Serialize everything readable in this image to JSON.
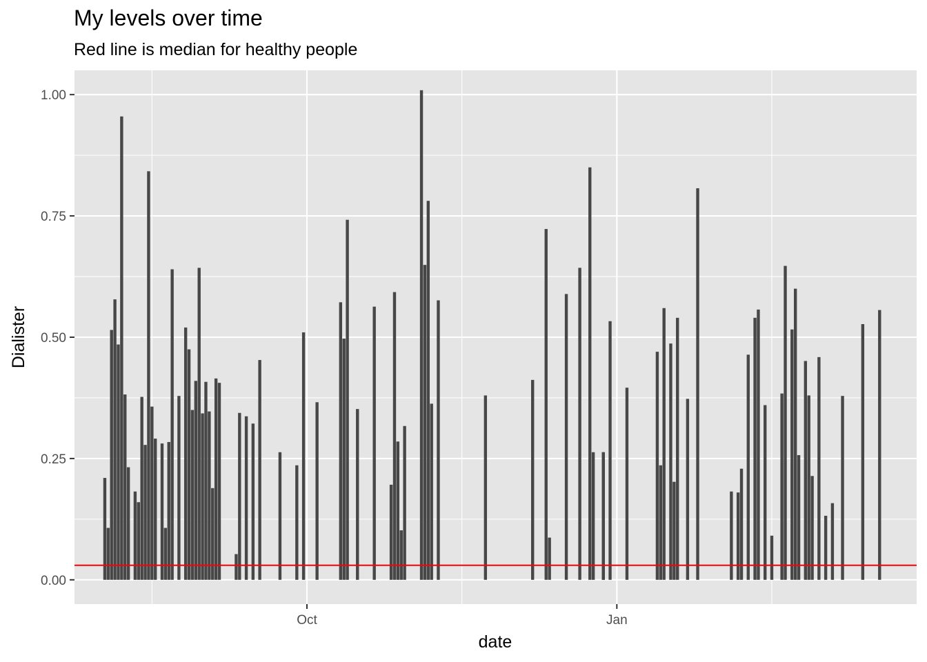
{
  "chart_data": {
    "type": "bar",
    "title": "My levels over time",
    "subtitle": "Red line is median for healthy people",
    "xlabel": "date",
    "ylabel": "Dialister",
    "x_range": [
      "2021-07-24",
      "2021-04-01"
    ],
    "x_domain_days": [
      0,
      250
    ],
    "ylim": [
      -0.05,
      1.05
    ],
    "x_tick_labels": [
      {
        "label": "Oct",
        "date": "2021-10-01"
      },
      {
        "label": "Jan",
        "date": "2022-01-01"
      }
    ],
    "y_ticks": [
      0.0,
      0.25,
      0.5,
      0.75,
      1.0
    ],
    "y_tick_labels": [
      "0.00",
      "0.25",
      "0.50",
      "0.75",
      "1.00"
    ],
    "hline": {
      "value": 0.03,
      "color": "#ff0000"
    },
    "bar_color": "#474747",
    "panel_color": "#e5e5e5",
    "grid": true,
    "legend": "none",
    "bars": [
      {
        "x": "2021-08-02",
        "y": 0.21
      },
      {
        "x": "2021-08-03",
        "y": 0.107
      },
      {
        "x": "2021-08-04",
        "y": 0.515
      },
      {
        "x": "2021-08-05",
        "y": 0.578
      },
      {
        "x": "2021-08-06",
        "y": 0.485
      },
      {
        "x": "2021-08-07",
        "y": 0.955
      },
      {
        "x": "2021-08-08",
        "y": 0.382
      },
      {
        "x": "2021-08-09",
        "y": 0.232
      },
      {
        "x": "2021-08-11",
        "y": 0.182
      },
      {
        "x": "2021-08-12",
        "y": 0.16
      },
      {
        "x": "2021-08-13",
        "y": 0.377
      },
      {
        "x": "2021-08-14",
        "y": 0.278
      },
      {
        "x": "2021-08-15",
        "y": 0.842
      },
      {
        "x": "2021-08-16",
        "y": 0.357
      },
      {
        "x": "2021-08-17",
        "y": 0.291
      },
      {
        "x": "2021-08-19",
        "y": 0.281
      },
      {
        "x": "2021-08-20",
        "y": 0.107
      },
      {
        "x": "2021-08-21",
        "y": 0.284
      },
      {
        "x": "2021-08-22",
        "y": 0.64
      },
      {
        "x": "2021-08-24",
        "y": 0.379
      },
      {
        "x": "2021-08-26",
        "y": 0.52
      },
      {
        "x": "2021-08-27",
        "y": 0.475
      },
      {
        "x": "2021-08-28",
        "y": 0.35
      },
      {
        "x": "2021-08-29",
        "y": 0.41
      },
      {
        "x": "2021-08-30",
        "y": 0.643
      },
      {
        "x": "2021-08-31",
        "y": 0.343
      },
      {
        "x": "2021-09-01",
        "y": 0.408
      },
      {
        "x": "2021-09-02",
        "y": 0.347
      },
      {
        "x": "2021-09-03",
        "y": 0.189
      },
      {
        "x": "2021-09-04",
        "y": 0.415
      },
      {
        "x": "2021-09-05",
        "y": 0.406
      },
      {
        "x": "2021-09-10",
        "y": 0.053
      },
      {
        "x": "2021-09-11",
        "y": 0.344
      },
      {
        "x": "2021-09-13",
        "y": 0.337
      },
      {
        "x": "2021-09-15",
        "y": 0.322
      },
      {
        "x": "2021-09-17",
        "y": 0.453
      },
      {
        "x": "2021-09-23",
        "y": 0.263
      },
      {
        "x": "2021-09-28",
        "y": 0.236
      },
      {
        "x": "2021-09-30",
        "y": 0.51
      },
      {
        "x": "2021-10-04",
        "y": 0.366
      },
      {
        "x": "2021-10-11",
        "y": 0.572
      },
      {
        "x": "2021-10-12",
        "y": 0.497
      },
      {
        "x": "2021-10-13",
        "y": 0.742
      },
      {
        "x": "2021-10-16",
        "y": 0.352
      },
      {
        "x": "2021-10-21",
        "y": 0.563
      },
      {
        "x": "2021-10-26",
        "y": 0.196
      },
      {
        "x": "2021-10-27",
        "y": 0.593
      },
      {
        "x": "2021-10-28",
        "y": 0.285
      },
      {
        "x": "2021-10-29",
        "y": 0.102
      },
      {
        "x": "2021-10-30",
        "y": 0.317
      },
      {
        "x": "2021-11-04",
        "y": 1.009
      },
      {
        "x": "2021-11-05",
        "y": 0.649
      },
      {
        "x": "2021-11-06",
        "y": 0.781
      },
      {
        "x": "2021-11-07",
        "y": 0.363
      },
      {
        "x": "2021-11-09",
        "y": 0.576
      },
      {
        "x": "2021-11-23",
        "y": 0.38
      },
      {
        "x": "2021-12-07",
        "y": 0.412
      },
      {
        "x": "2021-12-11",
        "y": 0.723
      },
      {
        "x": "2021-12-12",
        "y": 0.087
      },
      {
        "x": "2021-12-17",
        "y": 0.589
      },
      {
        "x": "2021-12-21",
        "y": 0.643
      },
      {
        "x": "2021-12-24",
        "y": 0.85
      },
      {
        "x": "2021-12-25",
        "y": 0.263
      },
      {
        "x": "2021-12-28",
        "y": 0.263
      },
      {
        "x": "2021-12-30",
        "y": 0.533
      },
      {
        "x": "2022-01-04",
        "y": 0.396
      },
      {
        "x": "2021-12-28",
        "y": 0.263
      },
      {
        "x": "2022-01-13",
        "y": 0.47
      },
      {
        "x": "2022-01-14",
        "y": 0.236
      },
      {
        "x": "2022-01-15",
        "y": 0.56
      },
      {
        "x": "2022-01-17",
        "y": 0.487
      },
      {
        "x": "2022-01-18",
        "y": 0.202
      },
      {
        "x": "2022-01-19",
        "y": 0.54
      },
      {
        "x": "2022-01-22",
        "y": 0.373
      },
      {
        "x": "2022-01-25",
        "y": 0.807
      },
      {
        "x": "2022-02-04",
        "y": 0.182
      },
      {
        "x": "2022-02-06",
        "y": 0.18
      },
      {
        "x": "2022-02-07",
        "y": 0.229
      },
      {
        "x": "2022-02-09",
        "y": 0.464
      },
      {
        "x": "2022-02-11",
        "y": 0.54
      },
      {
        "x": "2022-02-12",
        "y": 0.557
      },
      {
        "x": "2022-02-14",
        "y": 0.36
      },
      {
        "x": "2022-02-16",
        "y": 0.091
      },
      {
        "x": "2022-02-19",
        "y": 0.384
      },
      {
        "x": "2022-02-20",
        "y": 0.647
      },
      {
        "x": "2022-02-22",
        "y": 0.516
      },
      {
        "x": "2022-02-23",
        "y": 0.6
      },
      {
        "x": "2022-02-24",
        "y": 0.257
      },
      {
        "x": "2022-02-26",
        "y": 0.451
      },
      {
        "x": "2022-02-27",
        "y": 0.38
      },
      {
        "x": "2022-02-28",
        "y": 0.214
      },
      {
        "x": "2022-03-02",
        "y": 0.459
      },
      {
        "x": "2022-03-04",
        "y": 0.132
      },
      {
        "x": "2022-03-06",
        "y": 0.158
      },
      {
        "x": "2022-03-09",
        "y": 0.379
      },
      {
        "x": "2022-03-15",
        "y": 0.527
      },
      {
        "x": "2022-03-20",
        "y": 0.556
      }
    ]
  }
}
